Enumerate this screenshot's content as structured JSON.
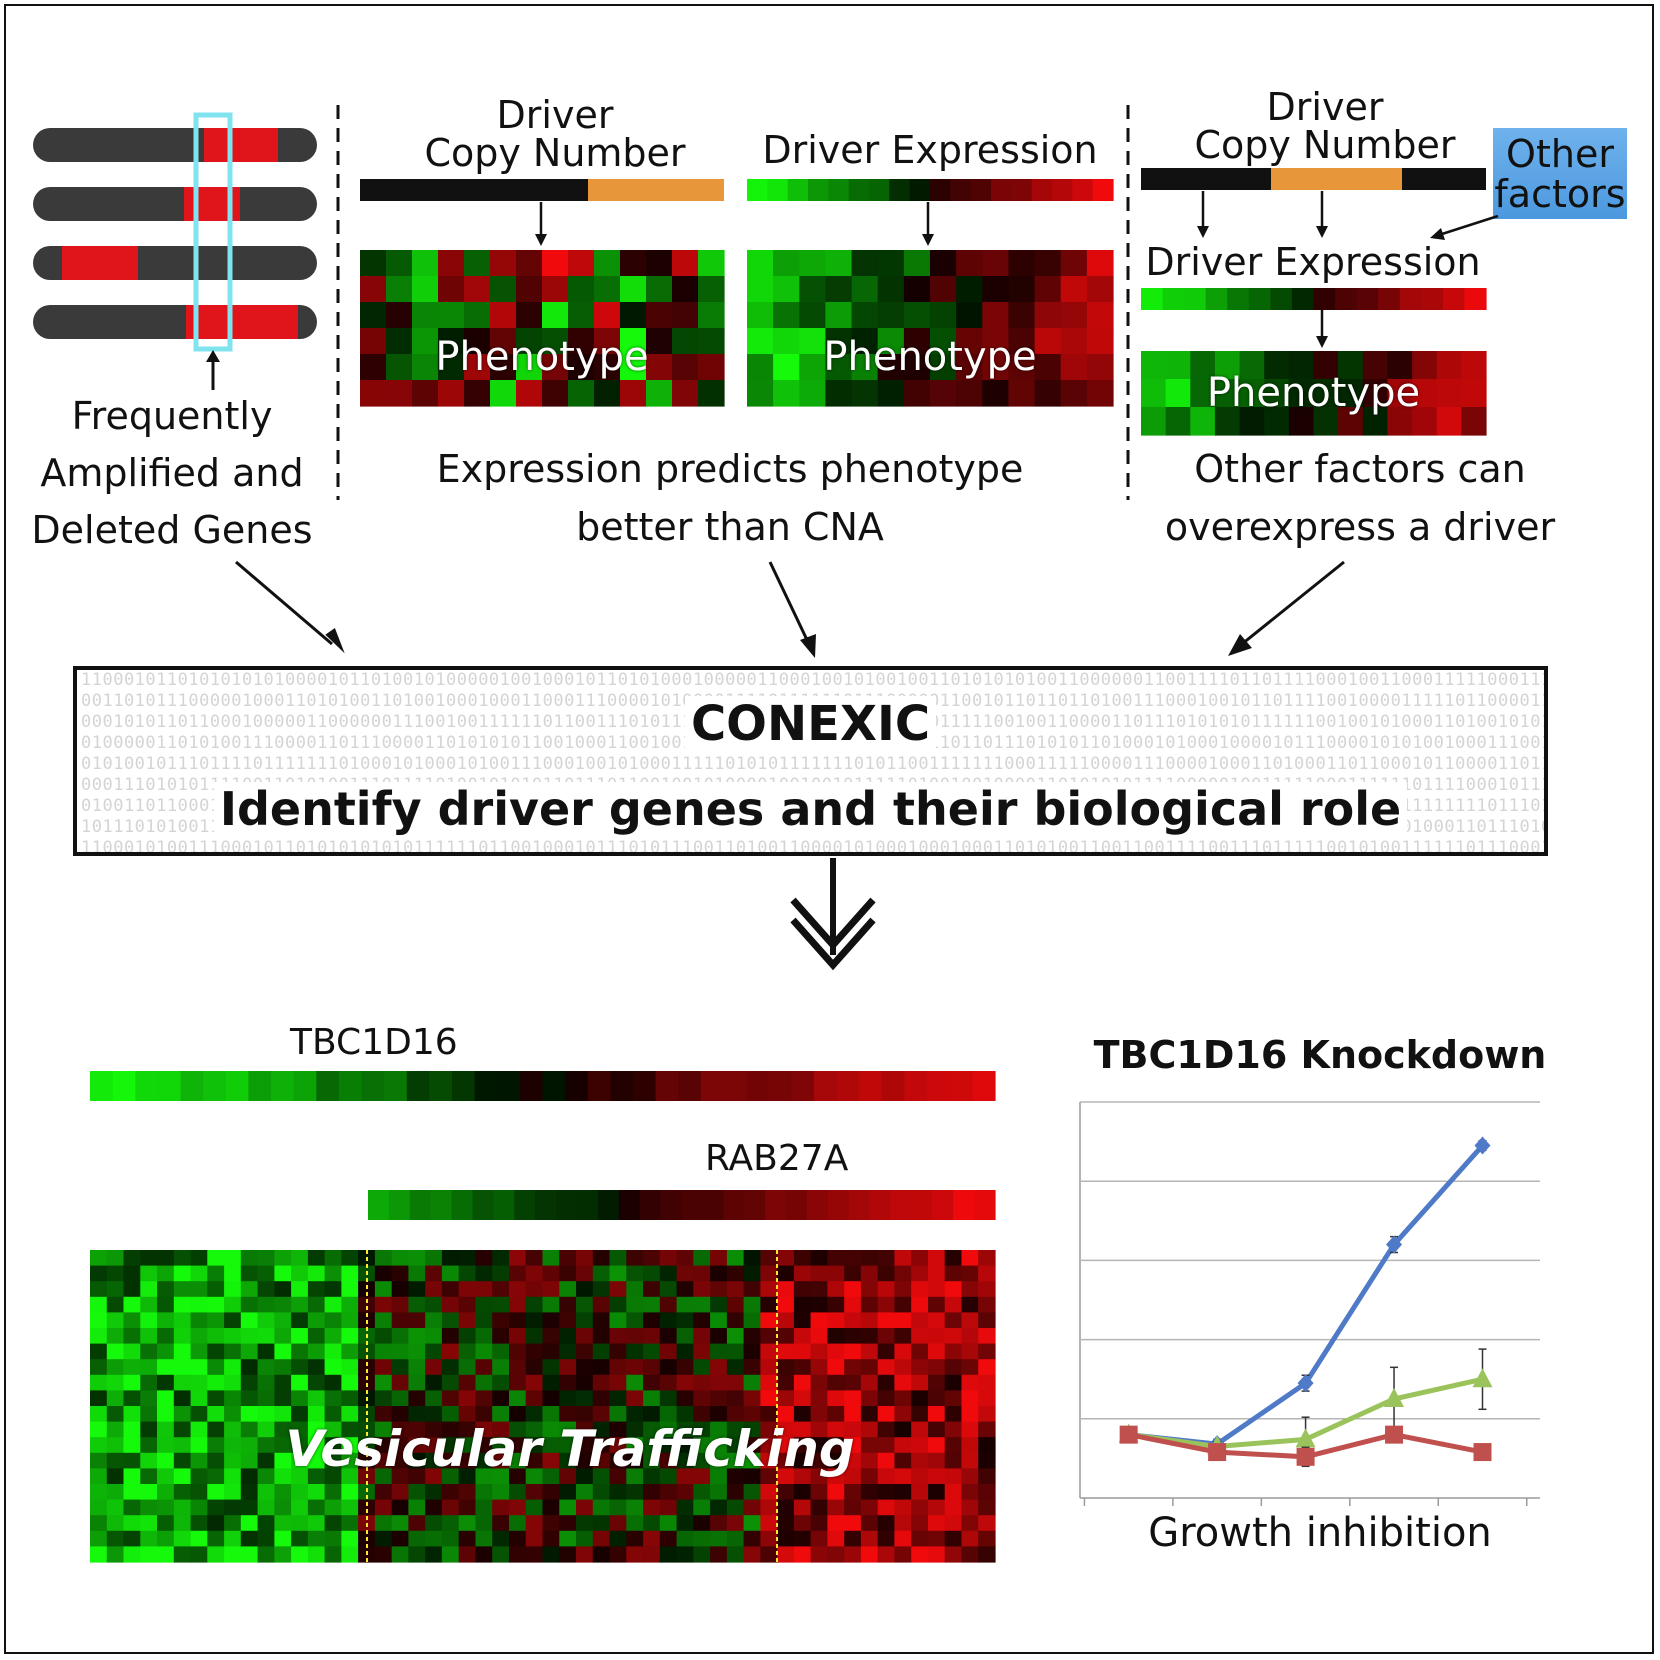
{
  "panel1": {
    "caption": [
      "Frequently",
      "Amplified and",
      "Deleted Genes"
    ]
  },
  "panel2": {
    "cn_label": [
      "Driver",
      "Copy Number"
    ],
    "expr_label": "Driver Expression",
    "phenotype_left": "Phenotype",
    "phenotype_right": "Phenotype",
    "caption": [
      "Expression predicts phenotype",
      "better than CNA"
    ]
  },
  "panel3": {
    "cn_label": [
      "Driver",
      "Copy Number"
    ],
    "other_factors": [
      "Other",
      "factors"
    ],
    "expr_label": "Driver Expression",
    "phenotype": "Phenotype",
    "caption": [
      "Other factors can",
      "overexpress a driver"
    ]
  },
  "conexic": {
    "title": "CONEXIC",
    "subtitle": "Identify driver genes and their biological role"
  },
  "bottom": {
    "gene1": "TBC1D16",
    "gene2": "RAB27A",
    "heatmap_label": "Vesicular Trafficking"
  },
  "colors": {
    "chromosome": "#3a3a3a",
    "amplified": "#e0141b",
    "highlight": "#7fe4ef",
    "copy_number_gain": "#e8963a",
    "other_factors_box": "#5aa6e6"
  },
  "chart_data": {
    "type": "line",
    "title": "TBC1D16 Knockdown",
    "xlabel": "Growth inhibition",
    "ylabel": "",
    "x": [
      1,
      2,
      3,
      4,
      5
    ],
    "ylim": [
      0,
      5
    ],
    "grid": true,
    "series": [
      {
        "color": "#4f7ac8",
        "marker": "diamond",
        "values": [
          0.8,
          0.68,
          1.45,
          3.2,
          4.45
        ],
        "errors": [
          0.04,
          0.06,
          0.1,
          0.1,
          0.06
        ]
      },
      {
        "color": "#9bc35b",
        "marker": "triangle",
        "values": [
          0.8,
          0.65,
          0.74,
          1.25,
          1.5
        ],
        "errors": [
          0.04,
          0.06,
          0.28,
          0.4,
          0.38
        ]
      },
      {
        "color": "#c0504d",
        "marker": "square",
        "values": [
          0.8,
          0.58,
          0.52,
          0.8,
          0.58
        ],
        "errors": [
          0.04,
          0.06,
          0.12,
          0.1,
          0.04
        ]
      }
    ]
  }
}
